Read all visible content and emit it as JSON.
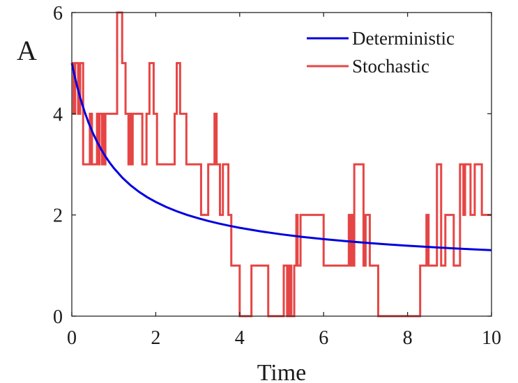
{
  "panel_label": "A",
  "chart_data": {
    "type": "line",
    "title": "",
    "xlabel": "Time",
    "ylabel": "",
    "xlim": [
      0,
      10
    ],
    "ylim": [
      0,
      6
    ],
    "xticks": [
      0,
      2,
      4,
      6,
      8,
      10
    ],
    "yticks": [
      0,
      2,
      4,
      6
    ],
    "tick_labels_x": [
      "0",
      "2",
      "4",
      "6",
      "8",
      "10"
    ],
    "tick_labels_y": [
      "0",
      "2",
      "4",
      "6"
    ],
    "grid": false,
    "legend_position": "top-right",
    "series": [
      {
        "name": "Deterministic",
        "color": "#0000e0",
        "kind": "curve",
        "x": [
          0,
          0.1,
          0.2,
          0.3,
          0.4,
          0.5,
          0.6,
          0.7,
          0.8,
          0.9,
          1.0,
          1.2,
          1.4,
          1.6,
          1.8,
          2.0,
          2.25,
          2.5,
          2.75,
          3.0,
          3.25,
          3.5,
          3.75,
          4.0,
          4.5,
          5.0,
          5.5,
          6.0,
          6.5,
          7.0,
          7.5,
          8.0,
          8.5,
          9.0,
          9.5,
          10.0
        ],
        "y": [
          5.0,
          4.628,
          4.316,
          4.05,
          3.821,
          3.622,
          3.448,
          3.294,
          3.158,
          3.036,
          2.927,
          2.74,
          2.586,
          2.458,
          2.349,
          2.257,
          2.157,
          2.073,
          2.0,
          1.937,
          1.881,
          1.831,
          1.786,
          1.746,
          1.675,
          1.616,
          1.566,
          1.522,
          1.484,
          1.45,
          1.419,
          1.392,
          1.367,
          1.344,
          1.323,
          1.304
        ]
      },
      {
        "name": "Stochastic",
        "color": "#e64545",
        "kind": "step",
        "x": [
          0,
          0.04,
          0.08,
          0.15,
          0.2,
          0.27,
          0.43,
          0.48,
          0.6,
          0.63,
          0.66,
          0.72,
          0.75,
          0.78,
          0.8,
          0.8,
          0.83,
          0.88,
          1.08,
          1.13,
          1.2,
          1.28,
          1.35,
          1.38,
          1.43,
          1.45,
          1.5,
          1.63,
          1.68,
          1.78,
          1.85,
          1.95,
          2.03,
          2.2,
          2.25,
          2.45,
          2.5,
          2.58,
          2.63,
          2.73,
          2.8,
          2.9,
          3.08,
          3.25,
          3.33,
          3.4,
          3.45,
          3.53,
          3.6,
          3.68,
          3.73,
          3.8,
          3.85,
          3.95,
          4.0,
          4.03,
          4.23,
          4.28,
          4.47,
          4.68,
          4.75,
          4.9,
          5.05,
          5.13,
          5.18,
          5.23,
          5.27,
          5.3,
          5.33,
          5.35,
          5.38,
          5.45,
          5.5,
          5.53,
          5.6,
          5.68,
          5.75,
          5.95,
          6.0,
          6.05,
          6.3,
          6.45,
          6.5,
          6.6,
          6.63,
          6.66,
          6.68,
          6.73,
          6.9,
          6.95,
          7.0,
          7.1,
          7.3,
          7.4,
          7.5,
          8.3,
          8.45,
          8.5,
          8.7,
          8.75,
          8.8,
          8.9,
          9.1,
          9.25,
          9.33,
          9.37,
          9.4,
          9.5,
          9.6,
          9.73,
          9.77,
          9.8,
          10.0
        ],
        "y": [
          5,
          4,
          5,
          4,
          5,
          3,
          4,
          3,
          4,
          3,
          4,
          3,
          4,
          3,
          3,
          4,
          4,
          4,
          6,
          6,
          5,
          4,
          3,
          4,
          3,
          4,
          4,
          4,
          3,
          4,
          5,
          4,
          3,
          3,
          3,
          4,
          5,
          4,
          4,
          3,
          3,
          3,
          2,
          3,
          3,
          4,
          3,
          2,
          3,
          3,
          2,
          1,
          1,
          1,
          0,
          0,
          0,
          1,
          1,
          0,
          0,
          0,
          1,
          0,
          1,
          0,
          0,
          1,
          1,
          2,
          1,
          2,
          2,
          2,
          2,
          2,
          2,
          2,
          1,
          1,
          1,
          1,
          1,
          2,
          1,
          2,
          1,
          3,
          3,
          1,
          2,
          1,
          0,
          0,
          0,
          1,
          2,
          1,
          3,
          3,
          1,
          2,
          1,
          3,
          2,
          3,
          3,
          2,
          3,
          3,
          2,
          2,
          2
        ]
      }
    ]
  }
}
